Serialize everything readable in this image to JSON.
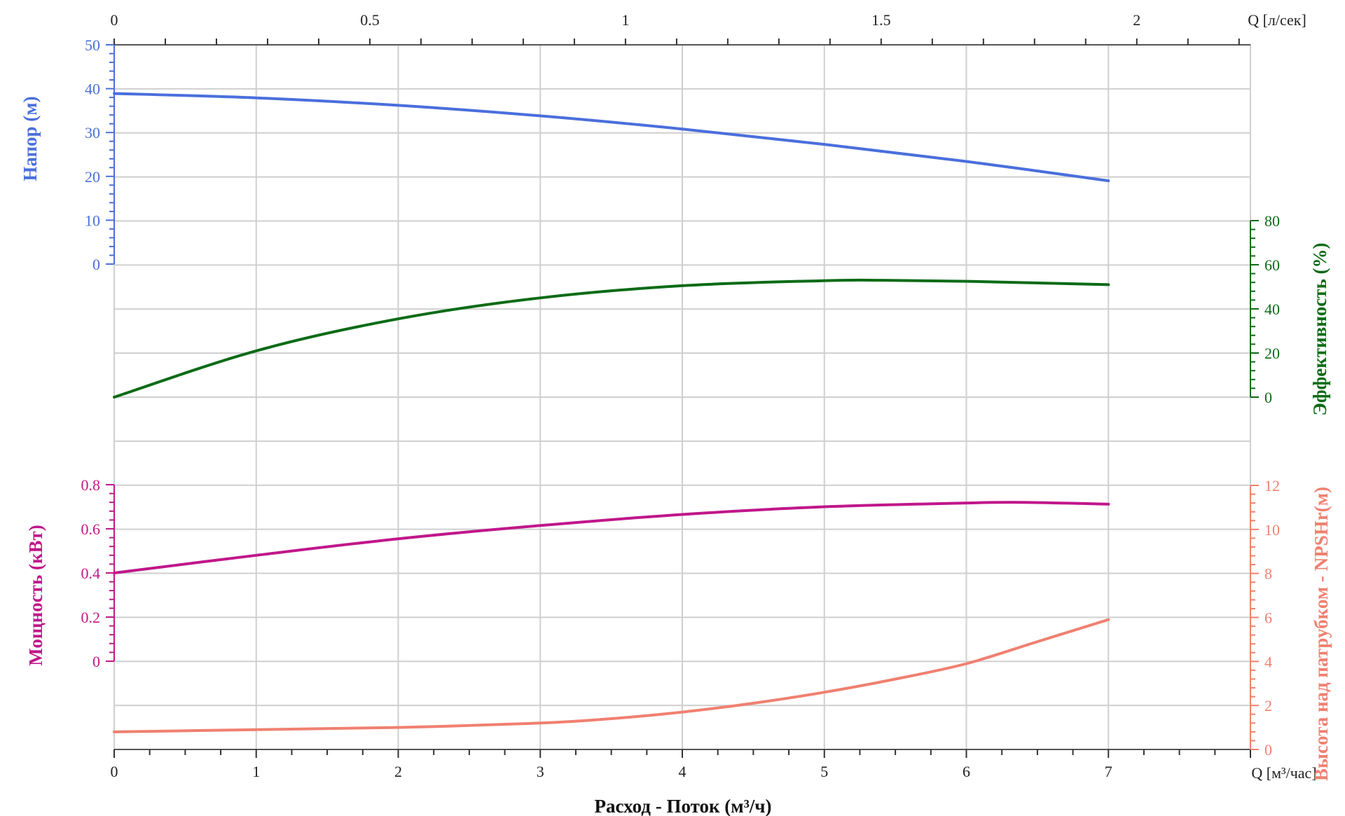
{
  "chart_data": {
    "type": "line",
    "xlabel": "Расход - Поток (м³/ч)",
    "x_unit": "Q [м³/час]",
    "x_top_unit": "Q [л/сек]",
    "xlim": [
      0,
      8
    ],
    "x_ticks": [
      0,
      1,
      2,
      3,
      4,
      5,
      6,
      7
    ],
    "x_top_ticks": [
      0,
      0.5,
      1,
      1.5,
      2
    ],
    "grid": true,
    "axes": {
      "head": {
        "label": "Напор (м)",
        "color": "#4a6fdc",
        "side": "left",
        "ticks": [
          0,
          10,
          20,
          30,
          40,
          50
        ],
        "range": [
          0,
          50
        ]
      },
      "efficiency": {
        "label": "Эффективность (%)",
        "color": "#0b6b16",
        "side": "right",
        "ticks": [
          0,
          20,
          40,
          60,
          80
        ],
        "range": [
          0,
          80
        ]
      },
      "power": {
        "label": "Мощность (кВт)",
        "color": "#c0178a",
        "side": "left",
        "ticks": [
          0,
          0.2,
          0.4,
          0.6,
          0.8
        ],
        "range": [
          0,
          0.8
        ]
      },
      "npsh": {
        "label": "Высота над патрубком - NPSHr(м)",
        "color": "#f08070",
        "side": "right",
        "ticks": [
          0,
          2,
          4,
          6,
          8,
          10,
          12
        ],
        "range": [
          0,
          12
        ]
      }
    },
    "series": [
      {
        "axis": "head",
        "color": "#4a6fdc",
        "x": [
          0,
          1,
          2,
          3,
          4,
          5,
          6,
          7
        ],
        "values": [
          38.9,
          37.9,
          36.2,
          33.8,
          30.8,
          27.3,
          23.4,
          19.0
        ]
      },
      {
        "axis": "efficiency",
        "color": "#0b6b16",
        "x": [
          0,
          1,
          2,
          3,
          4,
          5,
          5.4,
          6,
          7
        ],
        "values": [
          0,
          21,
          35.5,
          45,
          50.5,
          52.8,
          53,
          52.5,
          51
        ]
      },
      {
        "axis": "power",
        "color": "#c0178a",
        "x": [
          0,
          1,
          2,
          3,
          4,
          5,
          6,
          6.4,
          7
        ],
        "values": [
          0.4,
          0.48,
          0.555,
          0.615,
          0.665,
          0.7,
          0.717,
          0.72,
          0.712
        ]
      },
      {
        "axis": "npsh",
        "color": "#f08070",
        "x": [
          0,
          1,
          2,
          3,
          3.5,
          4,
          4.5,
          5,
          5.5,
          6,
          6.5,
          7
        ],
        "values": [
          0.8,
          0.9,
          1.0,
          1.2,
          1.4,
          1.7,
          2.1,
          2.6,
          3.2,
          3.9,
          4.9,
          5.9
        ]
      }
    ]
  }
}
